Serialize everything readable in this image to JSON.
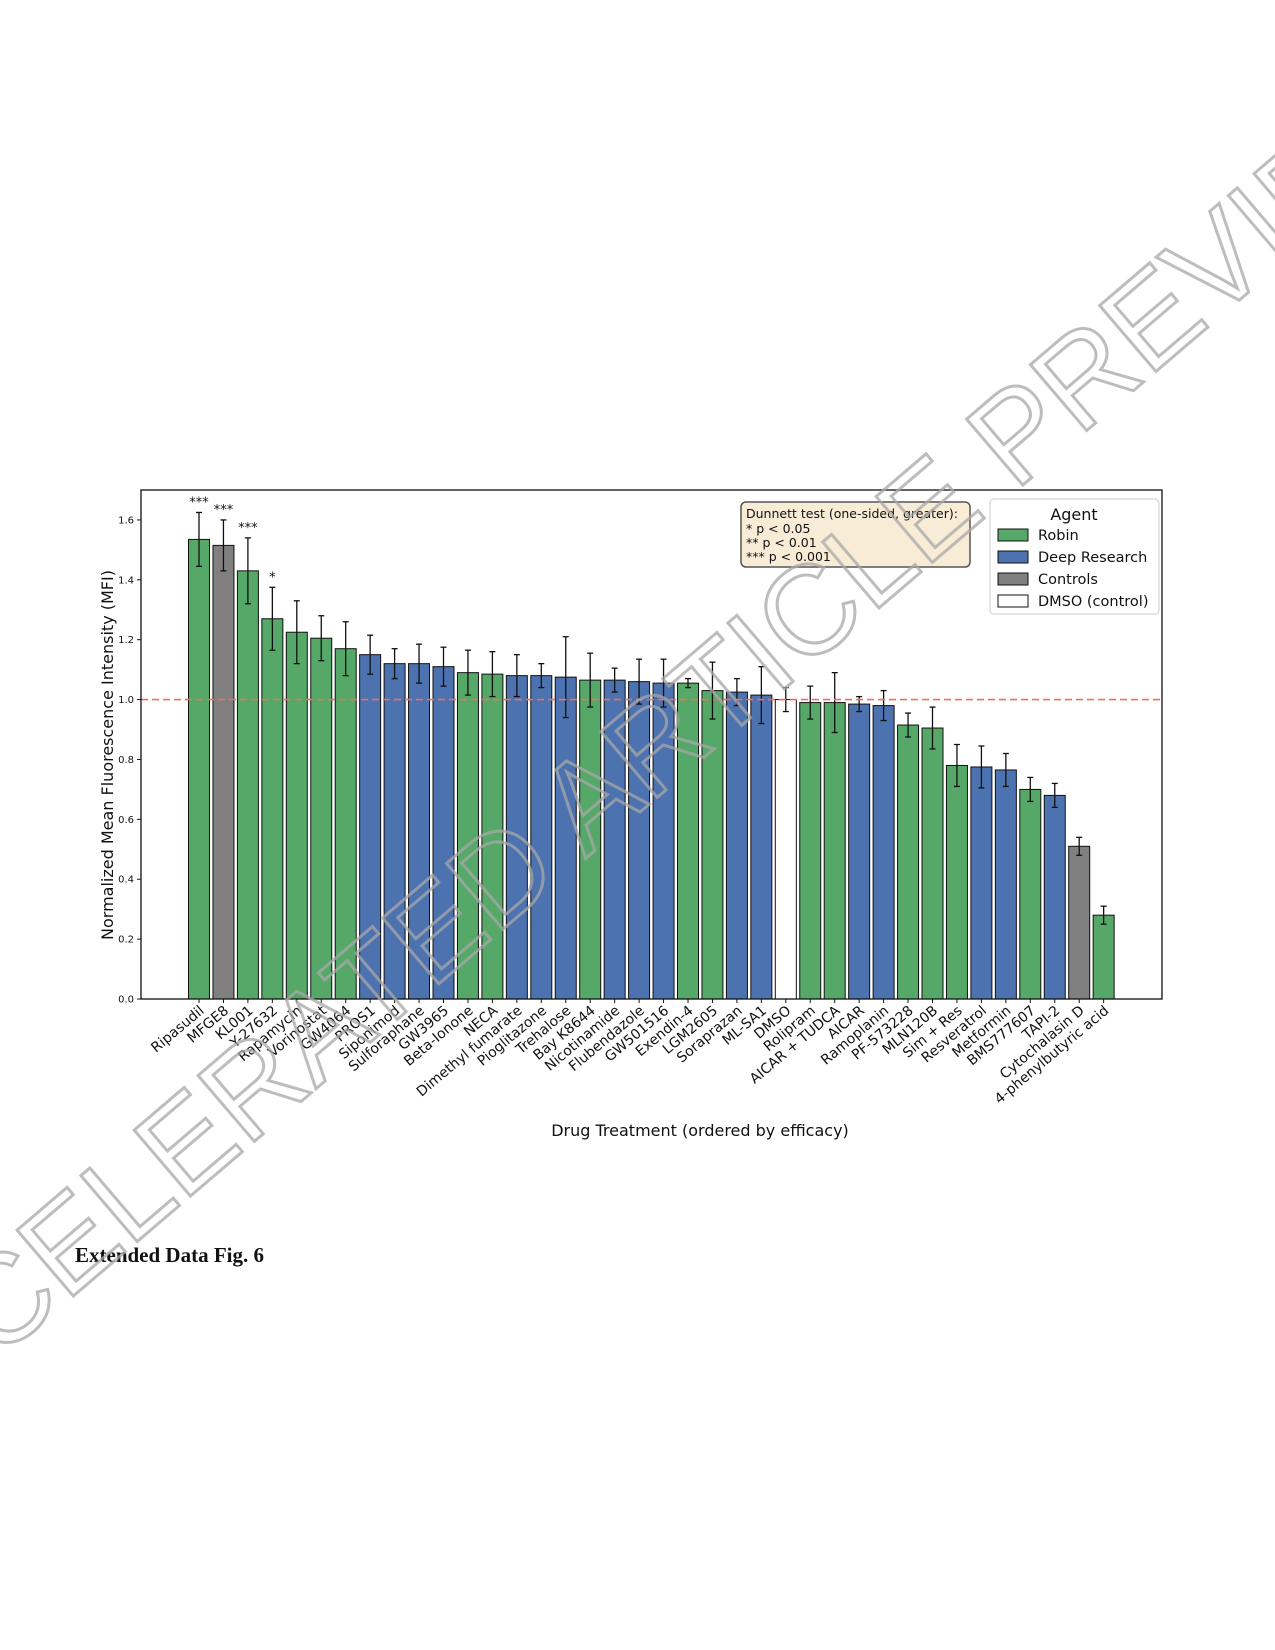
{
  "caption": "Extended Data Fig. 6",
  "watermark": "ACCELERATED ARTICLE PREVIEW",
  "colors": {
    "Robin": "#55a868",
    "Deep Research": "#4c72b0",
    "Controls": "#808080",
    "DMSO (control)": "#ffffff",
    "reference_line": "#e8735a"
  },
  "chart_data": {
    "type": "bar",
    "xlabel": "Drug Treatment (ordered by efficacy)",
    "ylabel": "Normalized Mean Fluorescence Intensity (MFI)",
    "ylim": [
      0,
      1.7
    ],
    "yticks": [
      "0.0",
      "0.2",
      "0.4",
      "0.6",
      "0.8",
      "1.0",
      "1.2",
      "1.4",
      "1.6"
    ],
    "reference_line": 1.0,
    "categories": [
      "Ripasudil",
      "MFGE8",
      "KL001",
      "Y-27632",
      "Rapamycin",
      "Vorinostat",
      "GW4064",
      "PROS1",
      "Siponimod",
      "Sulforaphane",
      "GW3965",
      "Beta-Ionone",
      "NECA",
      "Dimethyl fumarate",
      "Pioglitazone",
      "Trehalose",
      "Bay K8644",
      "Nicotinamide",
      "Flubendazole",
      "GW501516",
      "Exendin-4",
      "LGM2605",
      "Soraprazan",
      "ML-SA1",
      "DMSO",
      "Rolipram",
      "AICAR + TUDCA",
      "AICAR",
      "Ramoplanin",
      "PF-573228",
      "MLN120B",
      "Sim + Res",
      "Resveratrol",
      "Metformin",
      "BMS777607",
      "TAPI-2",
      "Cytochalasin D",
      "4-phenylbutyric acid"
    ],
    "values": [
      1.535,
      1.515,
      1.43,
      1.27,
      1.225,
      1.205,
      1.17,
      1.15,
      1.12,
      1.12,
      1.11,
      1.09,
      1.085,
      1.08,
      1.08,
      1.075,
      1.065,
      1.065,
      1.06,
      1.055,
      1.055,
      1.03,
      1.025,
      1.015,
      1.0,
      0.99,
      0.99,
      0.985,
      0.98,
      0.915,
      0.905,
      0.78,
      0.775,
      0.765,
      0.7,
      0.68,
      0.51,
      0.28
    ],
    "errors": [
      0.09,
      0.085,
      0.11,
      0.105,
      0.105,
      0.075,
      0.09,
      0.065,
      0.05,
      0.065,
      0.065,
      0.075,
      0.075,
      0.07,
      0.04,
      0.135,
      0.09,
      0.04,
      0.075,
      0.08,
      0.015,
      0.095,
      0.045,
      0.095,
      0.04,
      0.055,
      0.1,
      0.025,
      0.05,
      0.04,
      0.07,
      0.07,
      0.07,
      0.055,
      0.04,
      0.04,
      0.03,
      0.03
    ],
    "agents": [
      "Robin",
      "Controls",
      "Robin",
      "Robin",
      "Robin",
      "Robin",
      "Robin",
      "Deep Research",
      "Deep Research",
      "Deep Research",
      "Deep Research",
      "Robin",
      "Robin",
      "Deep Research",
      "Deep Research",
      "Deep Research",
      "Robin",
      "Deep Research",
      "Deep Research",
      "Deep Research",
      "Robin",
      "Robin",
      "Deep Research",
      "Deep Research",
      "DMSO (control)",
      "Robin",
      "Robin",
      "Deep Research",
      "Deep Research",
      "Robin",
      "Robin",
      "Robin",
      "Deep Research",
      "Deep Research",
      "Robin",
      "Deep Research",
      "Controls",
      "Robin"
    ],
    "significance": [
      "***",
      "***",
      "***",
      "*",
      "",
      "",
      "",
      "",
      "",
      "",
      "",
      "",
      "",
      "",
      "",
      "",
      "",
      "",
      "",
      "",
      "",
      "",
      "",
      "",
      "",
      "",
      "",
      "",
      "",
      "",
      "",
      "",
      "",
      "",
      "",
      "",
      "",
      ""
    ],
    "legend": {
      "title": "Agent",
      "placement": "top-right",
      "entries": [
        "Robin",
        "Deep Research",
        "Controls",
        "DMSO (control)"
      ]
    },
    "annotation": {
      "lines": [
        "Dunnett test (one-sided, greater):",
        "* p < 0.05",
        "** p < 0.01",
        "*** p < 0.001"
      ]
    }
  }
}
